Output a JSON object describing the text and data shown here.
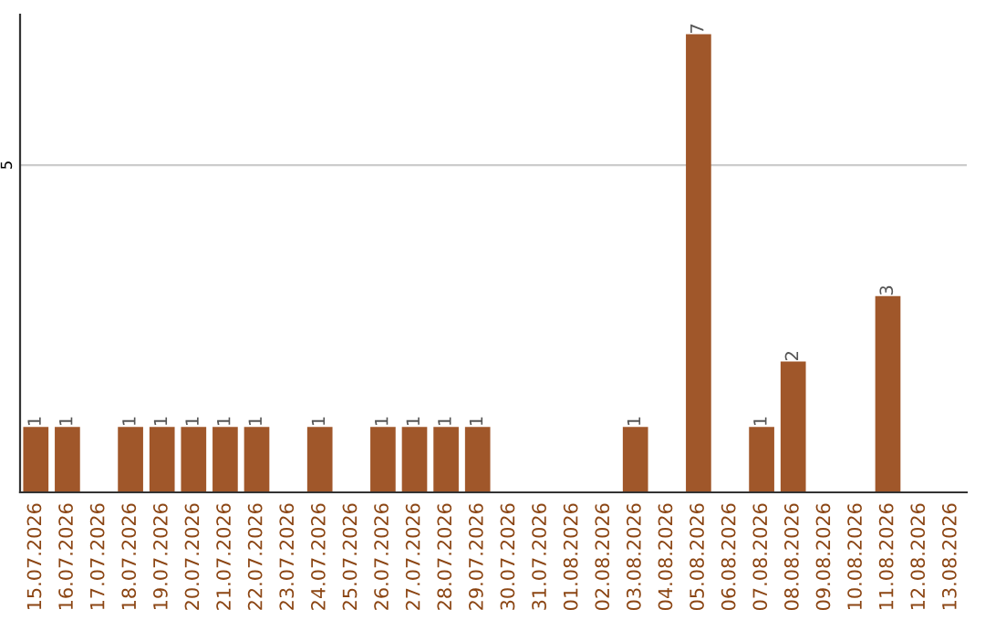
{
  "chart_data": {
    "type": "bar",
    "categories": [
      "15.07.2026",
      "16.07.2026",
      "17.07.2026",
      "18.07.2026",
      "19.07.2026",
      "20.07.2026",
      "21.07.2026",
      "22.07.2026",
      "23.07.2026",
      "24.07.2026",
      "25.07.2026",
      "26.07.2026",
      "27.07.2026",
      "28.07.2026",
      "29.07.2026",
      "30.07.2026",
      "31.07.2026",
      "01.08.2026",
      "02.08.2026",
      "03.08.2026",
      "04.08.2026",
      "05.08.2026",
      "06.08.2026",
      "07.08.2026",
      "08.08.2026",
      "09.08.2026",
      "10.08.2026",
      "11.08.2026",
      "12.08.2026",
      "13.08.2026"
    ],
    "values": [
      1,
      1,
      0,
      1,
      1,
      1,
      1,
      1,
      0,
      1,
      0,
      1,
      1,
      1,
      1,
      0,
      0,
      0,
      0,
      1,
      0,
      7,
      0,
      1,
      2,
      0,
      0,
      3,
      0,
      0
    ],
    "value_labels": [
      "1",
      "1",
      null,
      "1",
      "1",
      "1",
      "1",
      "1",
      null,
      "1",
      null,
      "1",
      "1",
      "1",
      "1",
      null,
      null,
      null,
      null,
      "1",
      null,
      "7",
      null,
      "1",
      "2",
      null,
      null,
      "3",
      null,
      null
    ],
    "color": "#a0572a",
    "ylim": [
      0,
      7.3
    ],
    "yticks": [
      5
    ],
    "grid": "y"
  }
}
